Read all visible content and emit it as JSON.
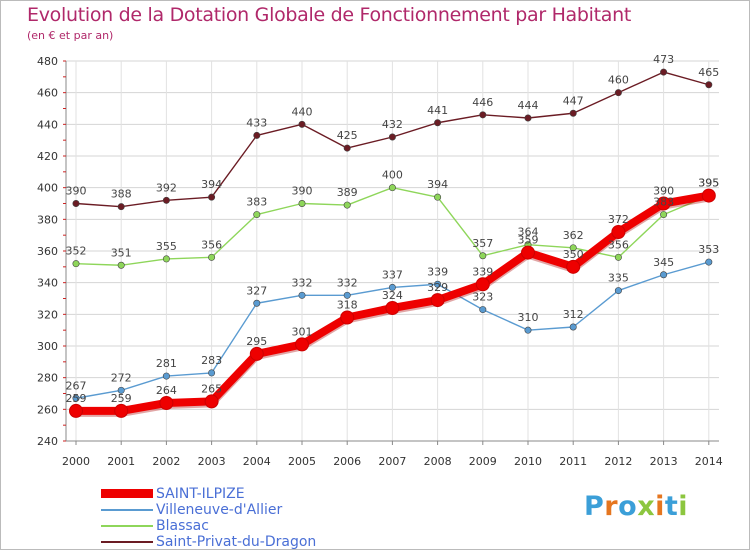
{
  "chart_data": {
    "type": "line",
    "title": "Evolution de la Dotation Globale de Fonctionnement par Habitant",
    "subtitle": "(en € et par an)",
    "x": [
      "2000",
      "2001",
      "2002",
      "2003",
      "2004",
      "2005",
      "2006",
      "2007",
      "2008",
      "2009",
      "2010",
      "2011",
      "2012",
      "2013",
      "2014"
    ],
    "ylim": [
      240,
      480
    ],
    "yticks": [
      240,
      260,
      280,
      300,
      320,
      340,
      360,
      380,
      400,
      420,
      440,
      460,
      480
    ],
    "grid": true,
    "legend_position": "bottom-left",
    "series": [
      {
        "name": "Saint-Privat-du-Dragon",
        "color": "#6b1c24",
        "values": [
          390,
          388,
          392,
          394,
          433,
          440,
          425,
          432,
          441,
          446,
          444,
          447,
          460,
          473,
          465
        ]
      },
      {
        "name": "Blassac",
        "color": "#8ed65a",
        "values": [
          352,
          351,
          355,
          356,
          383,
          390,
          389,
          400,
          394,
          357,
          364,
          362,
          356,
          383,
          395
        ]
      },
      {
        "name": "Villeneuve-d'Allier",
        "color": "#5a9bd1",
        "values": [
          267,
          272,
          281,
          283,
          327,
          332,
          332,
          337,
          339,
          323,
          310,
          312,
          335,
          345,
          353
        ]
      },
      {
        "name": "SAINT-ILPIZE",
        "color": "#ee0000",
        "values": [
          259,
          259,
          264,
          265,
          295,
          301,
          318,
          324,
          329,
          339,
          359,
          350,
          372,
          390,
          395
        ]
      }
    ]
  },
  "legend": {
    "items": [
      {
        "label": "SAINT-ILPIZE",
        "color": "#ee0000"
      },
      {
        "label": "Villeneuve-d'Allier",
        "color": "#5a9bd1"
      },
      {
        "label": "Blassac",
        "color": "#8ed65a"
      },
      {
        "label": "Saint-Privat-du-Dragon",
        "color": "#6b1c24"
      }
    ]
  },
  "logo": {
    "text": "Proxiti",
    "letter_colors": [
      "#3b9fd8",
      "#e5761f",
      "#3b9fd8",
      "#8cc63f",
      "#e5761f",
      "#3b9fd8",
      "#8cc63f"
    ]
  }
}
